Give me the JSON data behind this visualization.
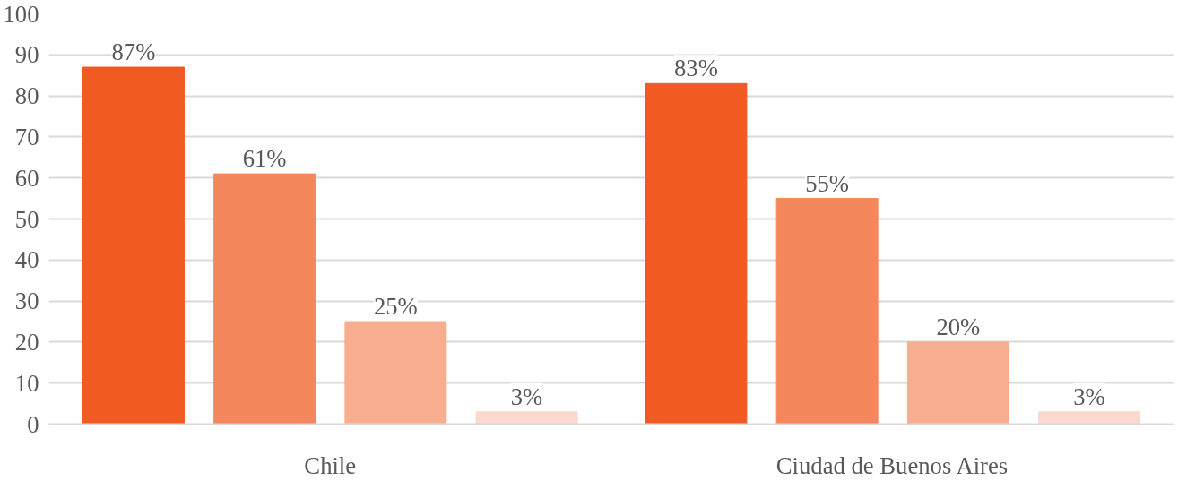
{
  "chart_data": {
    "type": "bar",
    "categories": [
      "Chile",
      "Ciudad de Buenos Aires"
    ],
    "series": [
      {
        "color": "#f15a22",
        "values": [
          87,
          83
        ],
        "value_labels": [
          "87%",
          "83%"
        ]
      },
      {
        "color": "#f4875b",
        "values": [
          61,
          55
        ],
        "value_labels": [
          "61%",
          "55%"
        ]
      },
      {
        "color": "#f8ad8f",
        "values": [
          25,
          20
        ],
        "value_labels": [
          "25%",
          "20%"
        ]
      },
      {
        "color": "#fbd9cc",
        "values": [
          3,
          3
        ],
        "value_labels": [
          "3%",
          "3%"
        ]
      }
    ],
    "ylim": [
      0,
      100
    ],
    "yticks": [
      0,
      10,
      20,
      30,
      40,
      50,
      60,
      70,
      80,
      90,
      100
    ],
    "grid": "y"
  }
}
